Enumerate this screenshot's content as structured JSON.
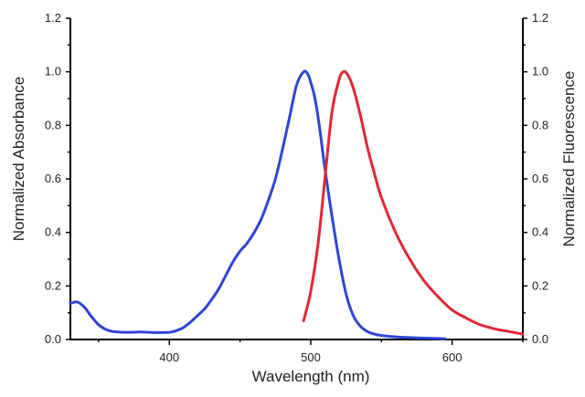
{
  "chart_data": {
    "type": "line",
    "title": "",
    "xlabel": "Wavelength (nm)",
    "ylabel_left": "Normalized Absorbance",
    "ylabel_right": "Normalized Fluorescence",
    "xlim": [
      330,
      650
    ],
    "ylim": [
      0,
      1.2
    ],
    "x_ticks": [
      400,
      500,
      600
    ],
    "y_ticks": [
      "0.0",
      "0.2",
      "0.4",
      "0.6",
      "0.8",
      "1.0",
      "1.2"
    ],
    "grid": false,
    "legend": "none",
    "series": [
      {
        "color": "#2f45d6",
        "axis": "left",
        "x": [
          330,
          335,
          340,
          345,
          350,
          355,
          360,
          370,
          380,
          390,
          400,
          405,
          410,
          415,
          420,
          425,
          430,
          435,
          440,
          445,
          450,
          455,
          460,
          465,
          470,
          475,
          480,
          485,
          490,
          495,
          498,
          500,
          503,
          506,
          510,
          515,
          520,
          525,
          530,
          535,
          540,
          545,
          550,
          560,
          570,
          580,
          595
        ],
        "y": [
          0.135,
          0.14,
          0.12,
          0.085,
          0.055,
          0.038,
          0.03,
          0.027,
          0.028,
          0.026,
          0.027,
          0.033,
          0.045,
          0.065,
          0.09,
          0.115,
          0.15,
          0.19,
          0.24,
          0.29,
          0.33,
          0.36,
          0.4,
          0.45,
          0.52,
          0.6,
          0.71,
          0.83,
          0.95,
          1.0,
          0.99,
          0.96,
          0.9,
          0.8,
          0.64,
          0.46,
          0.3,
          0.17,
          0.09,
          0.05,
          0.03,
          0.02,
          0.015,
          0.01,
          0.007,
          0.005,
          0.003
        ]
      },
      {
        "color": "#e32636",
        "axis": "right",
        "x": [
          495,
          500,
          505,
          510,
          515,
          520,
          523,
          526,
          530,
          535,
          540,
          545,
          550,
          560,
          570,
          580,
          590,
          600,
          610,
          620,
          630,
          640,
          650
        ],
        "y": [
          0.07,
          0.18,
          0.35,
          0.6,
          0.85,
          0.97,
          1.0,
          0.99,
          0.94,
          0.84,
          0.72,
          0.62,
          0.53,
          0.4,
          0.3,
          0.22,
          0.16,
          0.11,
          0.08,
          0.055,
          0.04,
          0.03,
          0.02
        ]
      }
    ]
  }
}
